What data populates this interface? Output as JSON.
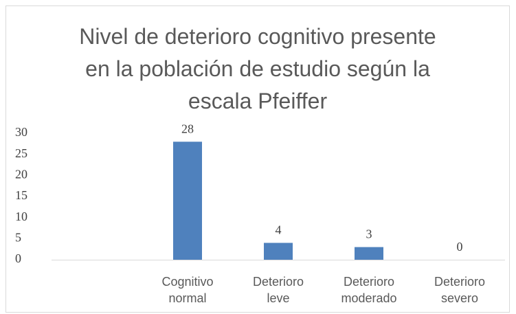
{
  "chart_data": {
    "type": "bar",
    "title": "Nivel de deterioro cognitivo presente en la población de estudio según la escala Pfeiffer",
    "categories": [
      null,
      "Cognitivo normal",
      "Deterioro leve",
      "Deterioro moderado",
      "Deterioro severo"
    ],
    "values": [
      null,
      28,
      4,
      3,
      0
    ],
    "color": "#4f81bd",
    "ylim": [
      0,
      30
    ],
    "yticks": [
      0,
      5,
      10,
      15,
      20,
      25,
      30
    ],
    "grid": false
  }
}
